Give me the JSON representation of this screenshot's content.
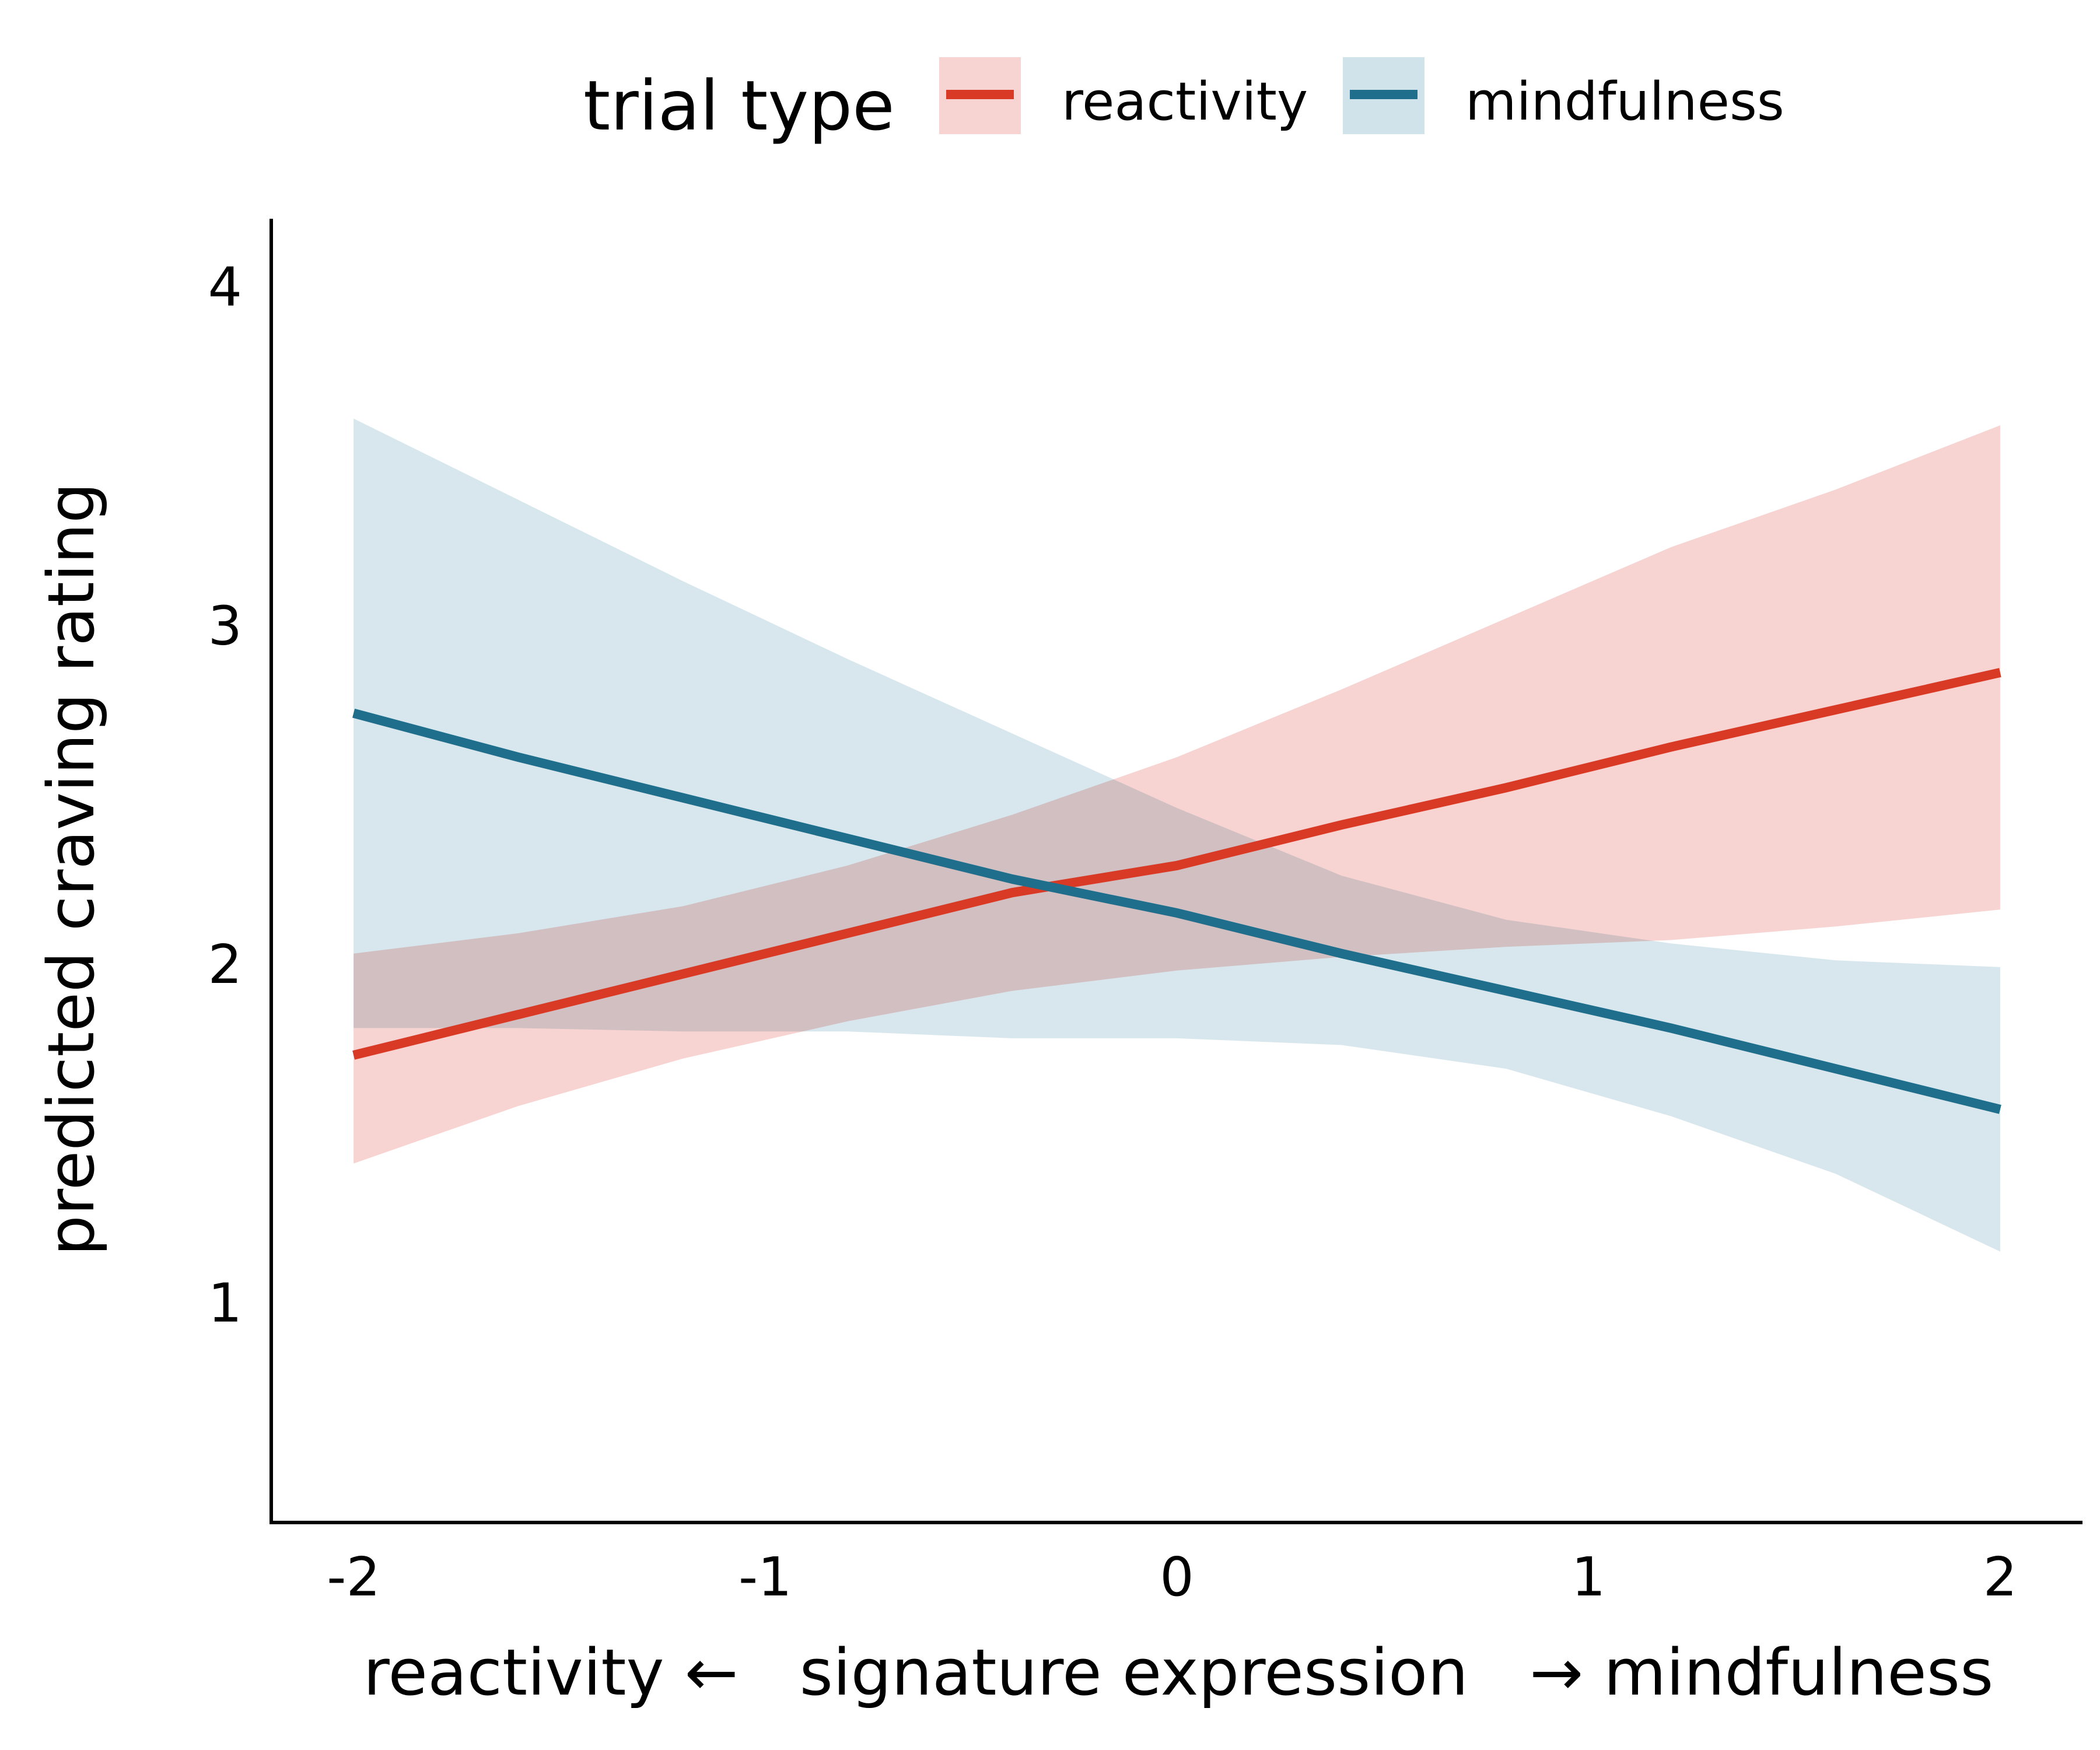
{
  "chart_data": {
    "type": "line",
    "legend": {
      "title": "trial type",
      "placement": "top"
    },
    "xlabel": "reactivity ←   signature expression   → mindfulness",
    "ylabel": "predicted craving rating",
    "xlim": [
      -2.2,
      2.2
    ],
    "ylim": [
      0.35,
      4.2
    ],
    "x_ticks": [
      {
        "value": -2,
        "label": "-2"
      },
      {
        "value": -1,
        "label": "-1"
      },
      {
        "value": 0,
        "label": "0"
      },
      {
        "value": 1,
        "label": "1"
      },
      {
        "value": 2,
        "label": "2"
      }
    ],
    "y_ticks": [
      {
        "value": 1,
        "label": "1"
      },
      {
        "value": 2,
        "label": "2"
      },
      {
        "value": 3,
        "label": "3"
      },
      {
        "value": 4,
        "label": "4"
      }
    ],
    "grid": false,
    "x": [
      -2.0,
      -1.6,
      -1.2,
      -0.8,
      -0.4,
      0.0,
      0.4,
      0.8,
      1.2,
      1.6,
      2.0
    ],
    "series": [
      {
        "name": "reactivity",
        "color": "#d93a26",
        "band_color": "#f7d3d1",
        "values": [
          1.73,
          1.85,
          1.97,
          2.09,
          2.21,
          2.29,
          2.41,
          2.52,
          2.64,
          2.75,
          2.86
        ],
        "lower": [
          1.41,
          1.58,
          1.72,
          1.83,
          1.92,
          1.98,
          2.02,
          2.05,
          2.07,
          2.11,
          2.16
        ],
        "upper": [
          2.03,
          2.09,
          2.17,
          2.29,
          2.44,
          2.61,
          2.81,
          3.02,
          3.23,
          3.4,
          3.59
        ]
      },
      {
        "name": "mindfulness",
        "color": "#1f6e8c",
        "band_color": "#d1e3ea",
        "values": [
          2.74,
          2.61,
          2.49,
          2.37,
          2.25,
          2.15,
          2.03,
          1.92,
          1.81,
          1.69,
          1.57
        ],
        "lower": [
          1.81,
          1.81,
          1.8,
          1.8,
          1.78,
          1.78,
          1.76,
          1.69,
          1.55,
          1.38,
          1.15
        ],
        "upper": [
          3.61,
          3.37,
          3.13,
          2.9,
          2.68,
          2.46,
          2.26,
          2.13,
          2.06,
          2.01,
          1.99
        ]
      }
    ]
  }
}
